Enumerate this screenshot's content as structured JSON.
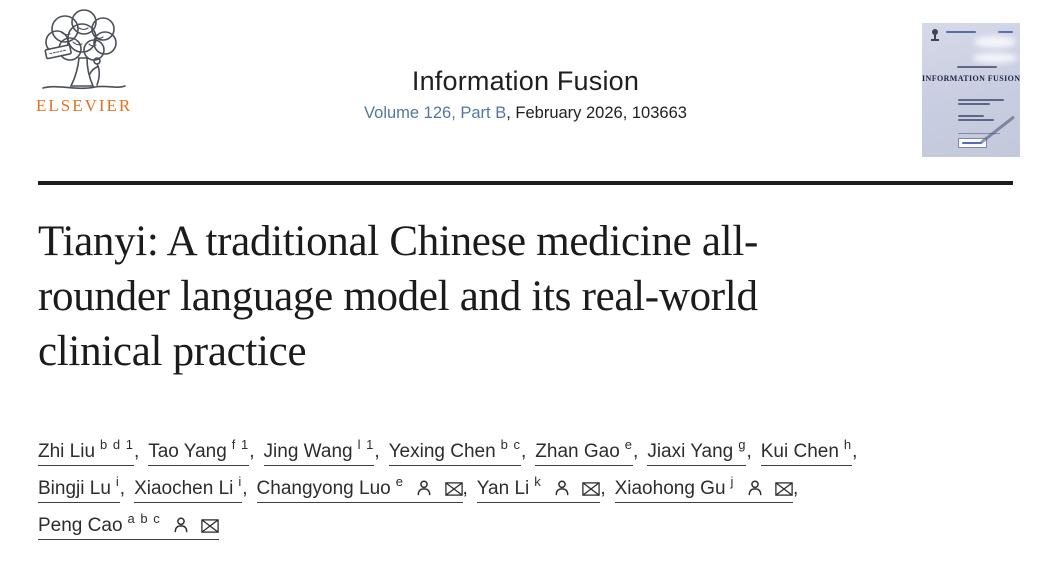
{
  "publisher": {
    "name": "ELSEVIER",
    "brand_color": "#e8711f"
  },
  "journal": {
    "title": "Information Fusion",
    "volume_link": "Volume 126, Part B",
    "citation_suffix": ", February 2026, 103663",
    "link_color": "#53779e",
    "cover_title": "INFORMATION FUSION"
  },
  "article": {
    "title": "Tianyi: A traditional Chinese medicine all-rounder language model and its real-world clinical practice",
    "title_lines": [
      "Tianyi: A traditional Chinese medicine all-",
      "rounder language model and its real-world",
      "clinical practice"
    ],
    "separator": ",",
    "authors": [
      {
        "name": "Zhi Liu",
        "sup": "b d 1",
        "contact": false,
        "line": 1
      },
      {
        "name": "Tao Yang",
        "sup": "f 1",
        "contact": false,
        "line": 1
      },
      {
        "name": "Jing Wang",
        "sup": "l 1",
        "contact": false,
        "line": 1
      },
      {
        "name": "Yexing Chen",
        "sup": "b c",
        "contact": false,
        "line": 1
      },
      {
        "name": "Zhan Gao",
        "sup": "e",
        "contact": false,
        "line": 1
      },
      {
        "name": "Jiaxi Yang",
        "sup": "g",
        "contact": false,
        "line": 1
      },
      {
        "name": "Kui Chen",
        "sup": "h",
        "contact": false,
        "line": 1
      },
      {
        "name": "Bingji Lu",
        "sup": "i",
        "contact": false,
        "line": 2
      },
      {
        "name": "Xiaochen Li",
        "sup": "i",
        "contact": false,
        "line": 2
      },
      {
        "name": "Changyong Luo",
        "sup": "e",
        "contact": true,
        "line": 2
      },
      {
        "name": "Yan Li",
        "sup": "k",
        "contact": true,
        "line": 2
      },
      {
        "name": "Xiaohong Gu",
        "sup": "j",
        "contact": true,
        "line": 2
      },
      {
        "name": "Peng Cao",
        "sup": "a b c",
        "contact": true,
        "line": 3
      }
    ]
  },
  "icons": {
    "person": "person-outline",
    "envelope": "envelope-with-x"
  }
}
